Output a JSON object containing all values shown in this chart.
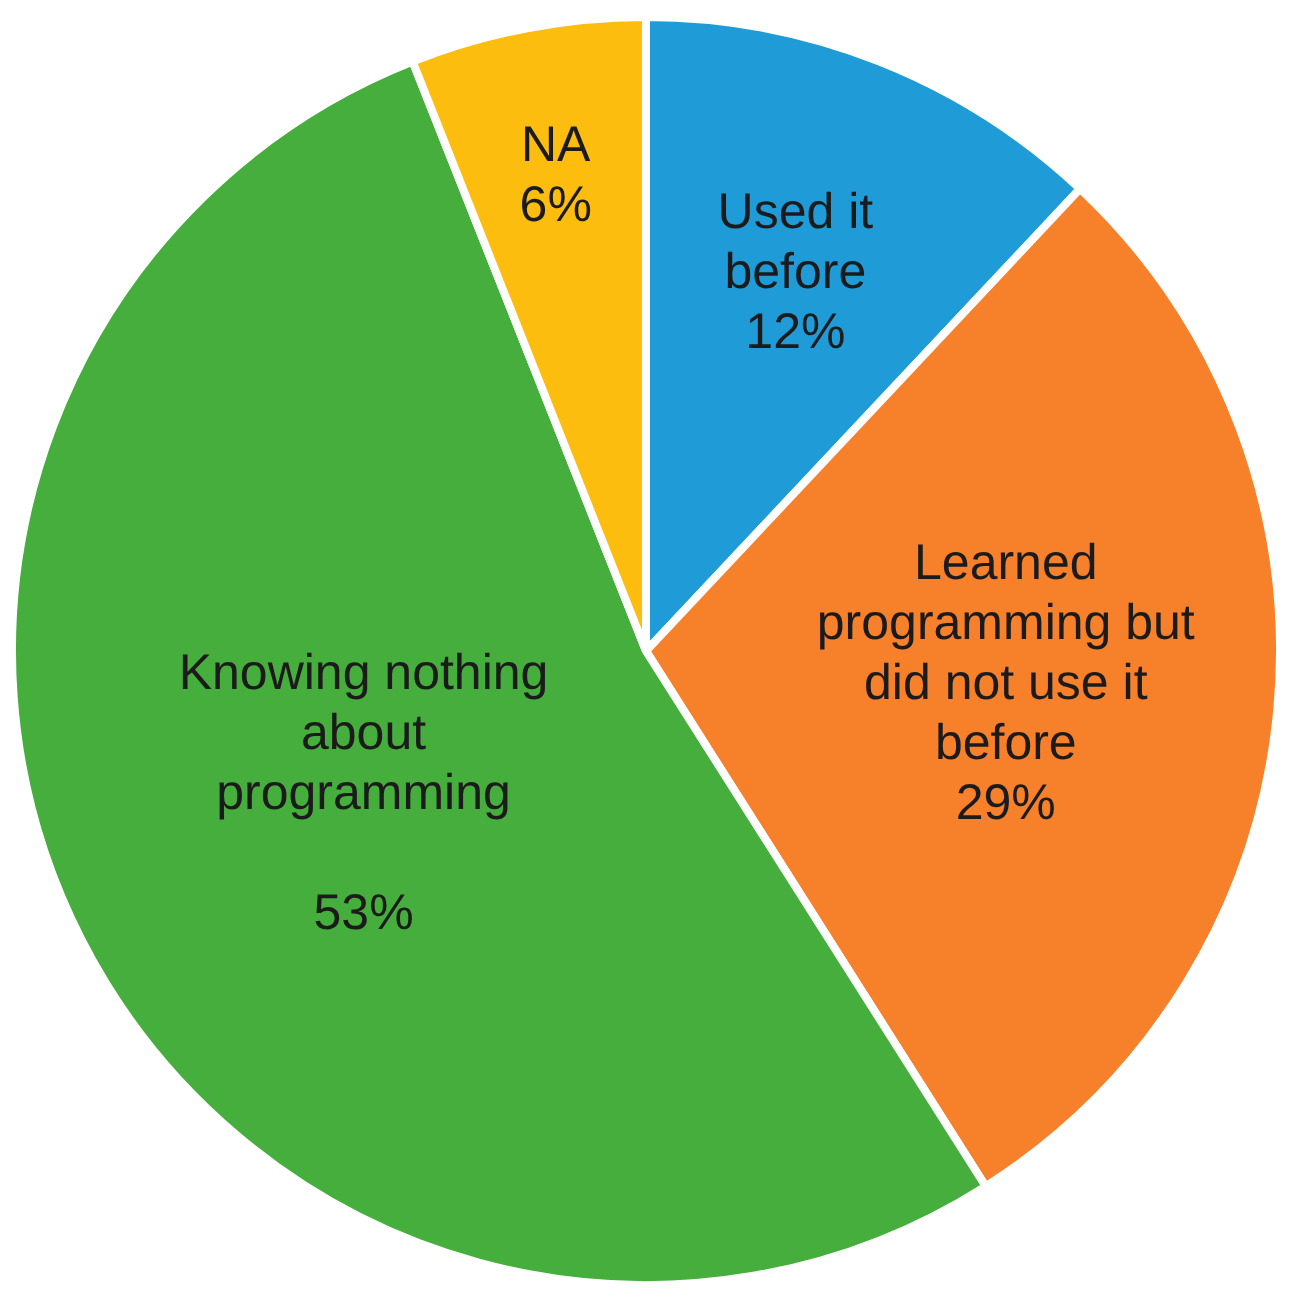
{
  "chart_data": {
    "type": "pie",
    "categories": [
      "Used it before",
      "Learned programming but did not use it before",
      "Knowing nothing about programming",
      "NA"
    ],
    "values": [
      12,
      29,
      53,
      6
    ],
    "value_labels": [
      "12%",
      "29%",
      "53%",
      "6%"
    ],
    "colors": [
      "#1f9bd8",
      "#f7802a",
      "#46ae3c",
      "#fcbd0f"
    ],
    "legend": false
  }
}
